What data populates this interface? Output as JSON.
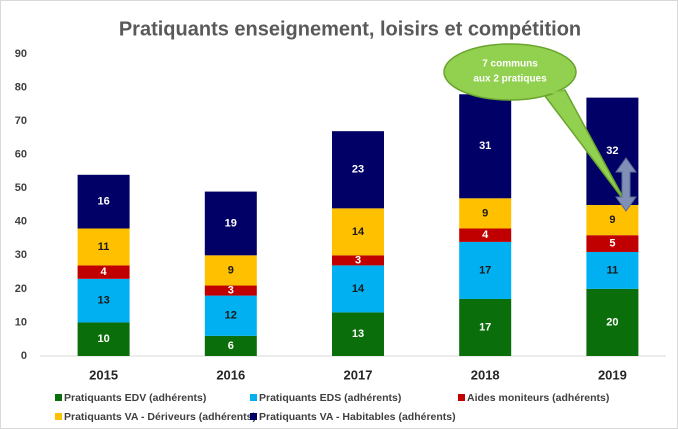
{
  "chart_data": {
    "type": "stacked_bar",
    "title": "Pratiquants enseignement, loisirs et compétition",
    "categories": [
      "2015",
      "2016",
      "2017",
      "2018",
      "2019"
    ],
    "series": [
      {
        "name": "Pratiquants EDV (adhérents)",
        "color": "#0a6e0a",
        "label_color": "#ffffff",
        "values": [
          10,
          6,
          13,
          17,
          20
        ]
      },
      {
        "name": "Pratiquants EDS (adhérents)",
        "color": "#00b0f0",
        "label_color": "#1a1a1a",
        "values": [
          13,
          12,
          14,
          17,
          11
        ]
      },
      {
        "name": "Aides moniteurs (adhérents)",
        "color": "#c00000",
        "label_color": "#ffffff",
        "values": [
          4,
          3,
          3,
          4,
          5
        ]
      },
      {
        "name": "Pratiquants VA - Dériveurs (adhérents)",
        "color": "#ffc000",
        "label_color": "#1a1a1a",
        "values": [
          11,
          9,
          14,
          9,
          9
        ]
      },
      {
        "name": "Pratiquants VA - Habitables (adhérents)",
        "color": "#000066",
        "label_color": "#ffffff",
        "values": [
          16,
          19,
          23,
          31,
          32
        ]
      }
    ],
    "ylim": [
      0,
      90
    ],
    "yticks": [
      0,
      10,
      20,
      30,
      40,
      50,
      60,
      70,
      80,
      90
    ],
    "grid": false,
    "annotation": [
      "7 communs",
      "aux 2 pratiques"
    ]
  }
}
